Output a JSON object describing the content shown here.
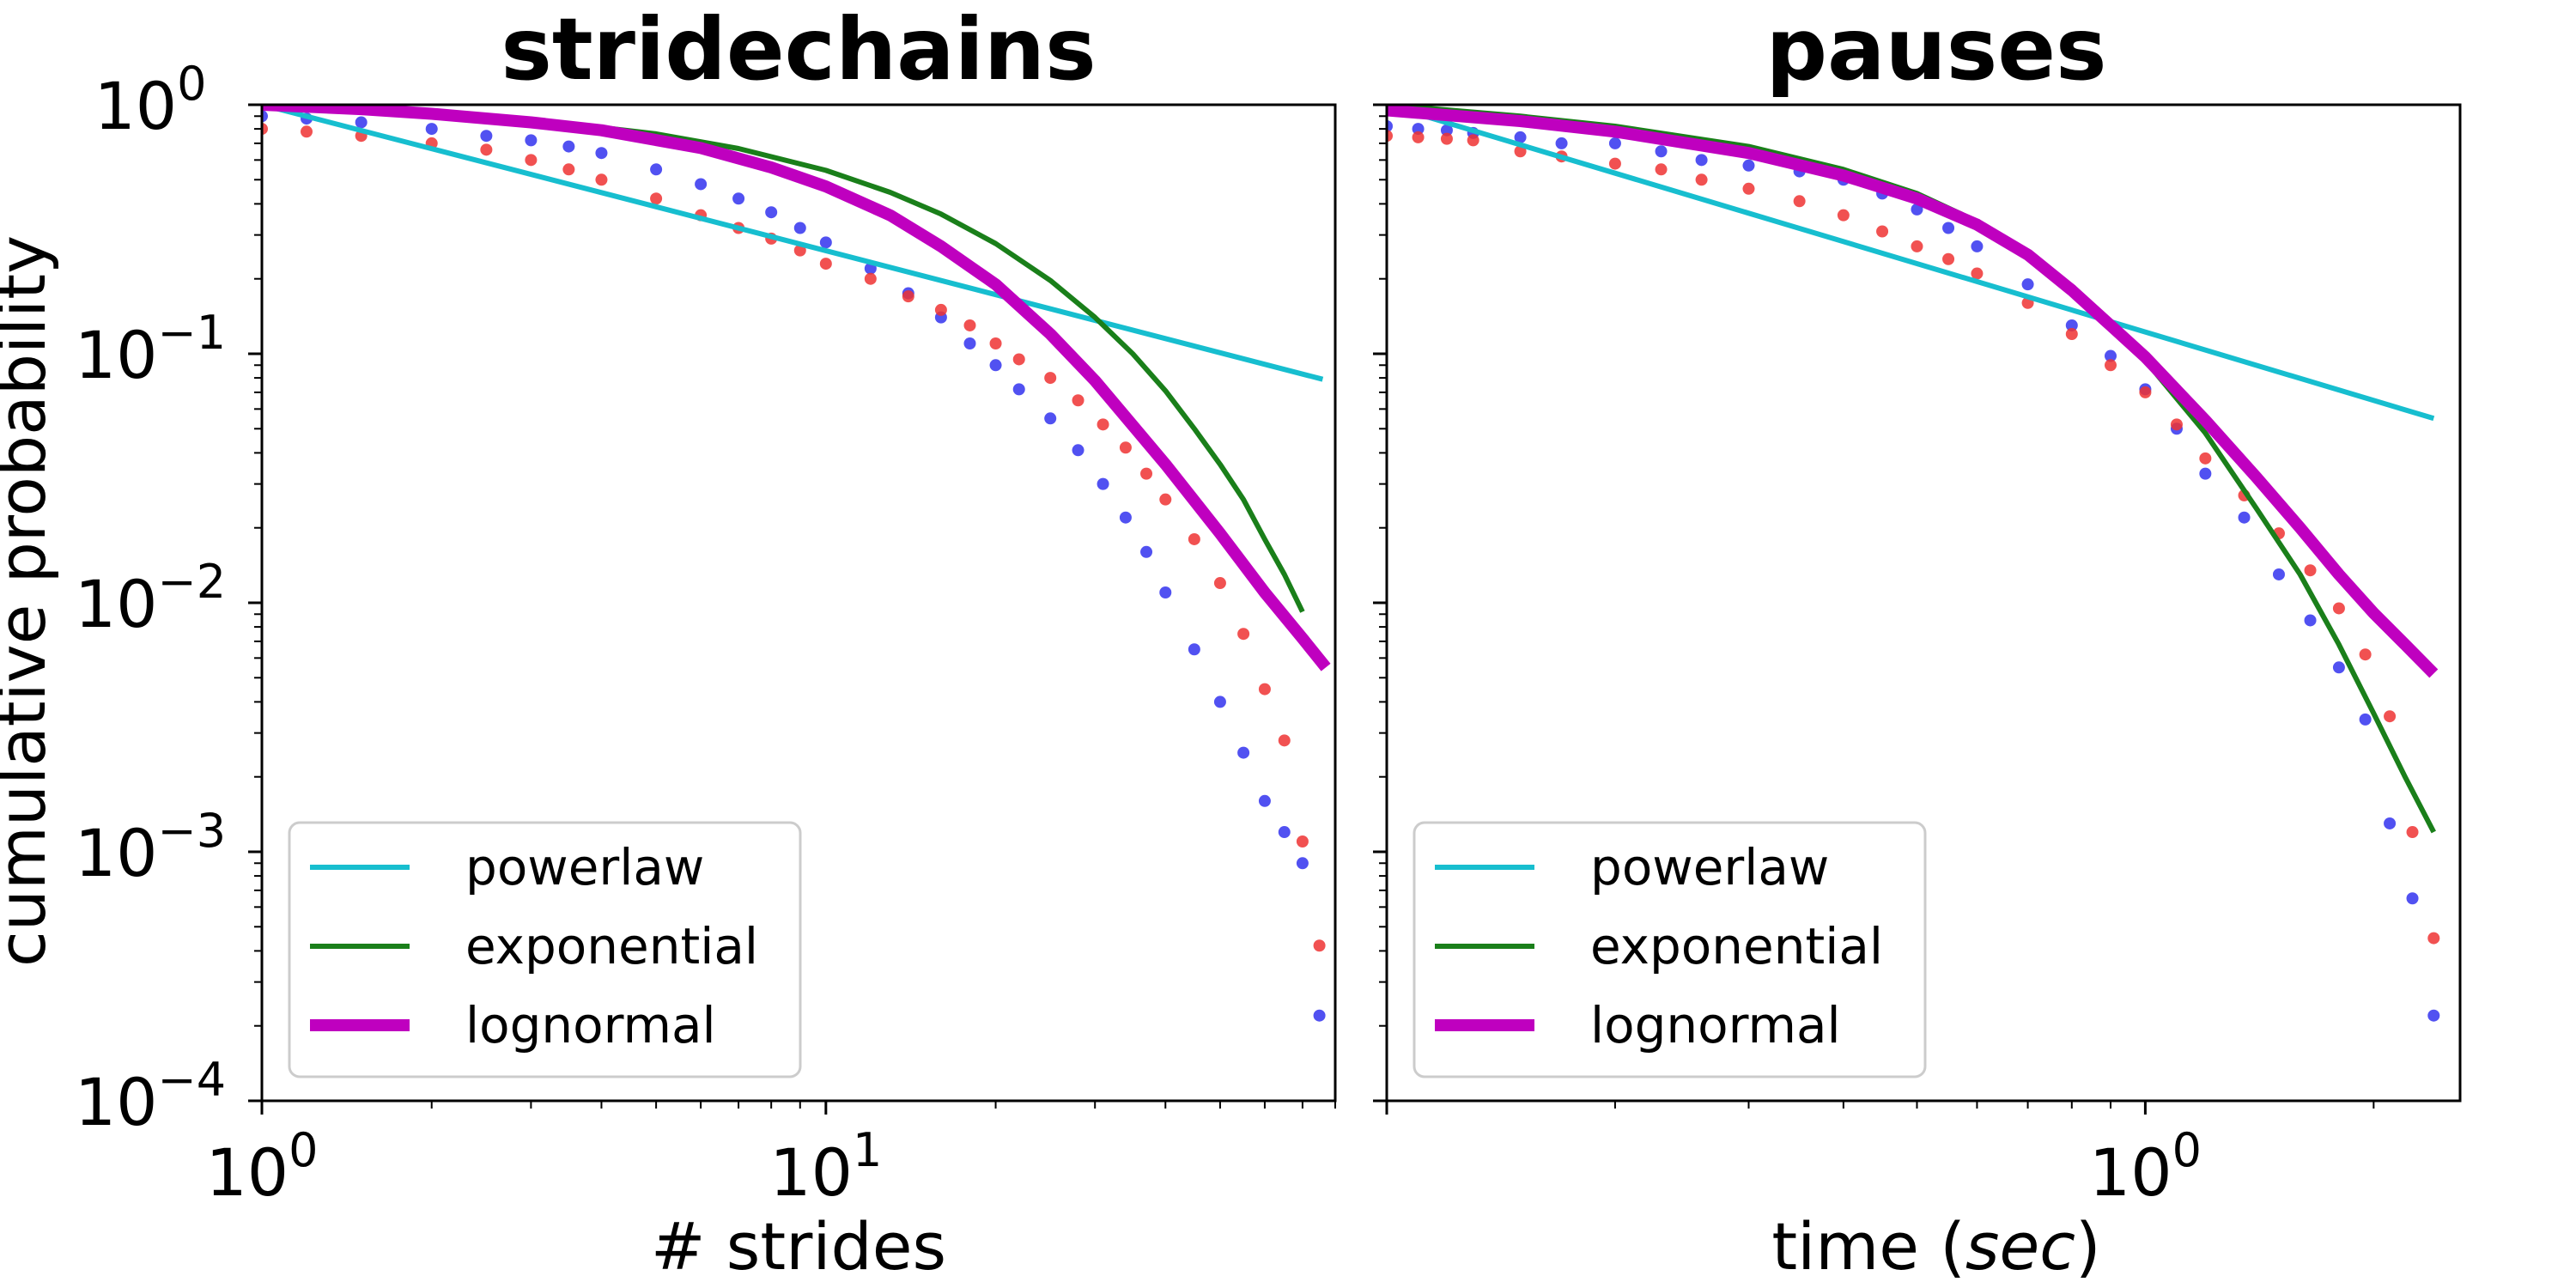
{
  "chart_data": [
    {
      "type": "scatter",
      "title": "stridechains",
      "xlabel": "# strides",
      "ylabel": "cumulative probability",
      "xscale": "log",
      "yscale": "log",
      "xlim": [
        1,
        80
      ],
      "ylim": [
        0.0001,
        1
      ],
      "x_ticks": [
        {
          "base": "10",
          "exp": "0"
        },
        {
          "base": "10",
          "exp": "1"
        }
      ],
      "y_ticks": [
        {
          "base": "10",
          "exp": "0"
        },
        {
          "base": "10",
          "exp": "−1"
        },
        {
          "base": "10",
          "exp": "−2"
        },
        {
          "base": "10",
          "exp": "−3"
        },
        {
          "base": "10",
          "exp": "−4"
        }
      ],
      "legend_position": "lower-left",
      "series": [
        {
          "name": "powerlaw",
          "kind": "line",
          "color": "#17becf",
          "x": [
            1,
            76
          ],
          "y": [
            1.0,
            0.079
          ]
        },
        {
          "name": "exponential",
          "kind": "line",
          "color": "#1a7f1a",
          "x": [
            1,
            2,
            3,
            5,
            7,
            10,
            13,
            16,
            20,
            25,
            30,
            35,
            40,
            45,
            50,
            55,
            60,
            65,
            70
          ],
          "y": [
            1.0,
            0.935,
            0.874,
            0.764,
            0.667,
            0.545,
            0.445,
            0.364,
            0.277,
            0.197,
            0.14,
            0.1,
            0.071,
            0.05,
            0.036,
            0.026,
            0.018,
            0.013,
            0.0092
          ]
        },
        {
          "name": "lognormal",
          "kind": "line",
          "color": "#bf00bf",
          "x": [
            1,
            1.5,
            2,
            3,
            4,
            6,
            8,
            10,
            13,
            16,
            20,
            25,
            30,
            40,
            50,
            60,
            70,
            77
          ],
          "y": [
            1.0,
            0.96,
            0.92,
            0.85,
            0.79,
            0.67,
            0.56,
            0.47,
            0.36,
            0.27,
            0.19,
            0.12,
            0.078,
            0.036,
            0.019,
            0.011,
            0.0072,
            0.0055
          ]
        },
        {
          "name": "",
          "kind": "points",
          "color": "#3333ee",
          "x": [
            1,
            1.2,
            1.5,
            2,
            2.5,
            3,
            3.5,
            4,
            5,
            6,
            7,
            8,
            9,
            10,
            12,
            14,
            16,
            18,
            20,
            22,
            25,
            28,
            31,
            34,
            37,
            40,
            45,
            50,
            55,
            60,
            65,
            70,
            75
          ],
          "y": [
            0.9,
            0.88,
            0.85,
            0.8,
            0.75,
            0.72,
            0.68,
            0.64,
            0.55,
            0.48,
            0.42,
            0.37,
            0.32,
            0.28,
            0.22,
            0.175,
            0.14,
            0.11,
            0.09,
            0.072,
            0.055,
            0.041,
            0.03,
            0.022,
            0.016,
            0.011,
            0.0065,
            0.004,
            0.0025,
            0.0016,
            0.0012,
            0.0009,
            0.00022
          ]
        },
        {
          "name": "",
          "kind": "points",
          "color": "#ee3333",
          "x": [
            1,
            1.2,
            1.5,
            2,
            2.5,
            3,
            3.5,
            4,
            5,
            6,
            7,
            8,
            9,
            10,
            12,
            14,
            16,
            18,
            20,
            22,
            25,
            28,
            31,
            34,
            37,
            40,
            45,
            50,
            55,
            60,
            65,
            70,
            75
          ],
          "y": [
            0.8,
            0.78,
            0.75,
            0.7,
            0.66,
            0.6,
            0.55,
            0.5,
            0.42,
            0.36,
            0.32,
            0.29,
            0.26,
            0.23,
            0.2,
            0.17,
            0.15,
            0.13,
            0.11,
            0.095,
            0.08,
            0.065,
            0.052,
            0.042,
            0.033,
            0.026,
            0.018,
            0.012,
            0.0075,
            0.0045,
            0.0028,
            0.0011,
            0.00042
          ]
        }
      ]
    },
    {
      "type": "scatter",
      "title": "pauses",
      "xlabel_prefix": "time (",
      "xlabel_emph": "sec",
      "xlabel_suffix": ")",
      "xscale": "log",
      "yscale": "log",
      "xlim": [
        0.1,
        2.6
      ],
      "ylim": [
        0.0001,
        1
      ],
      "x_ticks": [
        {
          "base": "10",
          "exp": "0"
        }
      ],
      "legend_position": "lower-left",
      "series": [
        {
          "name": "powerlaw",
          "kind": "line",
          "color": "#17becf",
          "x": [
            0.1,
            2.4
          ],
          "y": [
            1.0,
            0.055
          ]
        },
        {
          "name": "exponential",
          "kind": "line",
          "color": "#1a7f1a",
          "x": [
            0.1,
            0.15,
            0.2,
            0.3,
            0.4,
            0.5,
            0.6,
            0.7,
            0.8,
            0.9,
            1.0,
            1.2,
            1.4,
            1.6,
            1.8,
            2.0,
            2.2,
            2.4
          ],
          "y": [
            1.0,
            0.9,
            0.82,
            0.68,
            0.55,
            0.44,
            0.34,
            0.25,
            0.18,
            0.13,
            0.094,
            0.048,
            0.024,
            0.013,
            0.0068,
            0.0036,
            0.002,
            0.0012
          ]
        },
        {
          "name": "lognormal",
          "kind": "line",
          "color": "#bf00bf",
          "x": [
            0.1,
            0.15,
            0.2,
            0.3,
            0.4,
            0.5,
            0.6,
            0.7,
            0.8,
            0.9,
            1.0,
            1.2,
            1.4,
            1.6,
            1.8,
            2.0,
            2.2,
            2.4
          ],
          "y": [
            0.95,
            0.86,
            0.78,
            0.64,
            0.52,
            0.42,
            0.33,
            0.25,
            0.18,
            0.13,
            0.097,
            0.054,
            0.032,
            0.02,
            0.013,
            0.0091,
            0.0068,
            0.0052
          ]
        },
        {
          "name": "",
          "kind": "points",
          "color": "#3333ee",
          "x": [
            0.1,
            0.11,
            0.12,
            0.13,
            0.15,
            0.17,
            0.2,
            0.23,
            0.26,
            0.3,
            0.35,
            0.4,
            0.45,
            0.5,
            0.55,
            0.6,
            0.7,
            0.8,
            0.9,
            1.0,
            1.1,
            1.2,
            1.35,
            1.5,
            1.65,
            1.8,
            1.95,
            2.1,
            2.25,
            2.4
          ],
          "y": [
            0.82,
            0.8,
            0.79,
            0.77,
            0.74,
            0.7,
            0.7,
            0.65,
            0.6,
            0.57,
            0.54,
            0.5,
            0.44,
            0.38,
            0.32,
            0.27,
            0.19,
            0.13,
            0.098,
            0.072,
            0.05,
            0.033,
            0.022,
            0.013,
            0.0085,
            0.0055,
            0.0034,
            0.0013,
            0.00065,
            0.00022
          ]
        },
        {
          "name": "",
          "kind": "points",
          "color": "#ee3333",
          "x": [
            0.1,
            0.11,
            0.12,
            0.13,
            0.15,
            0.17,
            0.2,
            0.23,
            0.26,
            0.3,
            0.35,
            0.4,
            0.45,
            0.5,
            0.55,
            0.6,
            0.7,
            0.8,
            0.9,
            1.0,
            1.1,
            1.2,
            1.35,
            1.5,
            1.65,
            1.8,
            1.95,
            2.1,
            2.25,
            2.4
          ],
          "y": [
            0.75,
            0.74,
            0.73,
            0.72,
            0.65,
            0.62,
            0.58,
            0.55,
            0.5,
            0.46,
            0.41,
            0.36,
            0.31,
            0.27,
            0.24,
            0.21,
            0.16,
            0.12,
            0.09,
            0.07,
            0.052,
            0.038,
            0.027,
            0.019,
            0.0135,
            0.0095,
            0.0062,
            0.0035,
            0.0012,
            0.00045
          ]
        }
      ]
    }
  ]
}
